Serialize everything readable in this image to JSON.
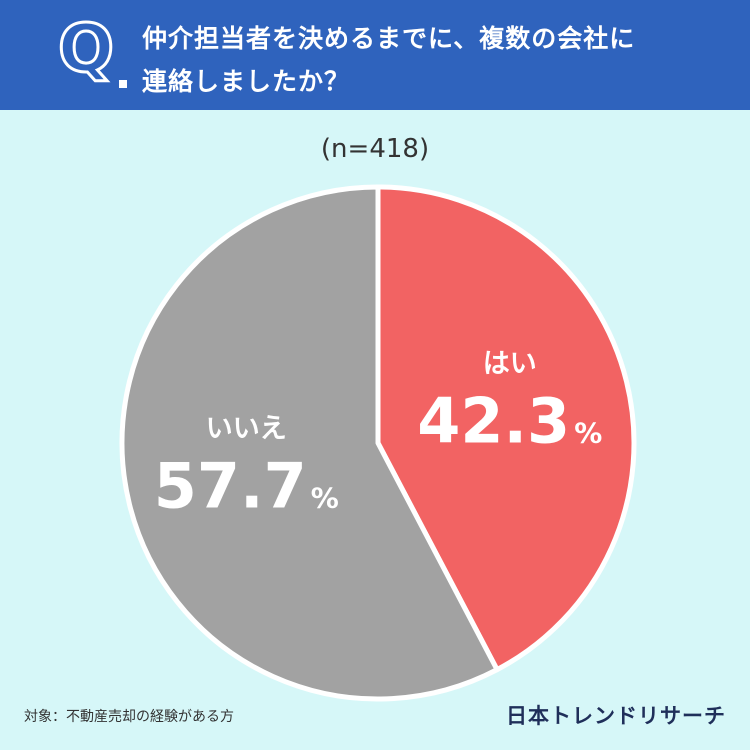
{
  "question": {
    "mark": "Q",
    "line1": "仲介担当者を決めるまでに、複数の会社に",
    "line2": "連絡しましたか？"
  },
  "sample_size": "(n=418)",
  "chart_data": {
    "type": "pie",
    "slices": [
      {
        "label": "はい",
        "value": 42.3,
        "value_label": "42.3",
        "unit": "%",
        "color": "#f26363"
      },
      {
        "label": "いいえ",
        "value": 57.7,
        "value_label": "57.7",
        "unit": "%",
        "color": "#a2a2a2"
      }
    ],
    "start": "12 o'clock",
    "direction": "clockwise"
  },
  "footer": {
    "note": "対象：不動産売却の経験がある方",
    "brand": "日本トレンドリサーチ"
  },
  "colors": {
    "header_bg": "#2f63bd",
    "background": "#d6f7f8",
    "label_text": "#ffffff"
  }
}
